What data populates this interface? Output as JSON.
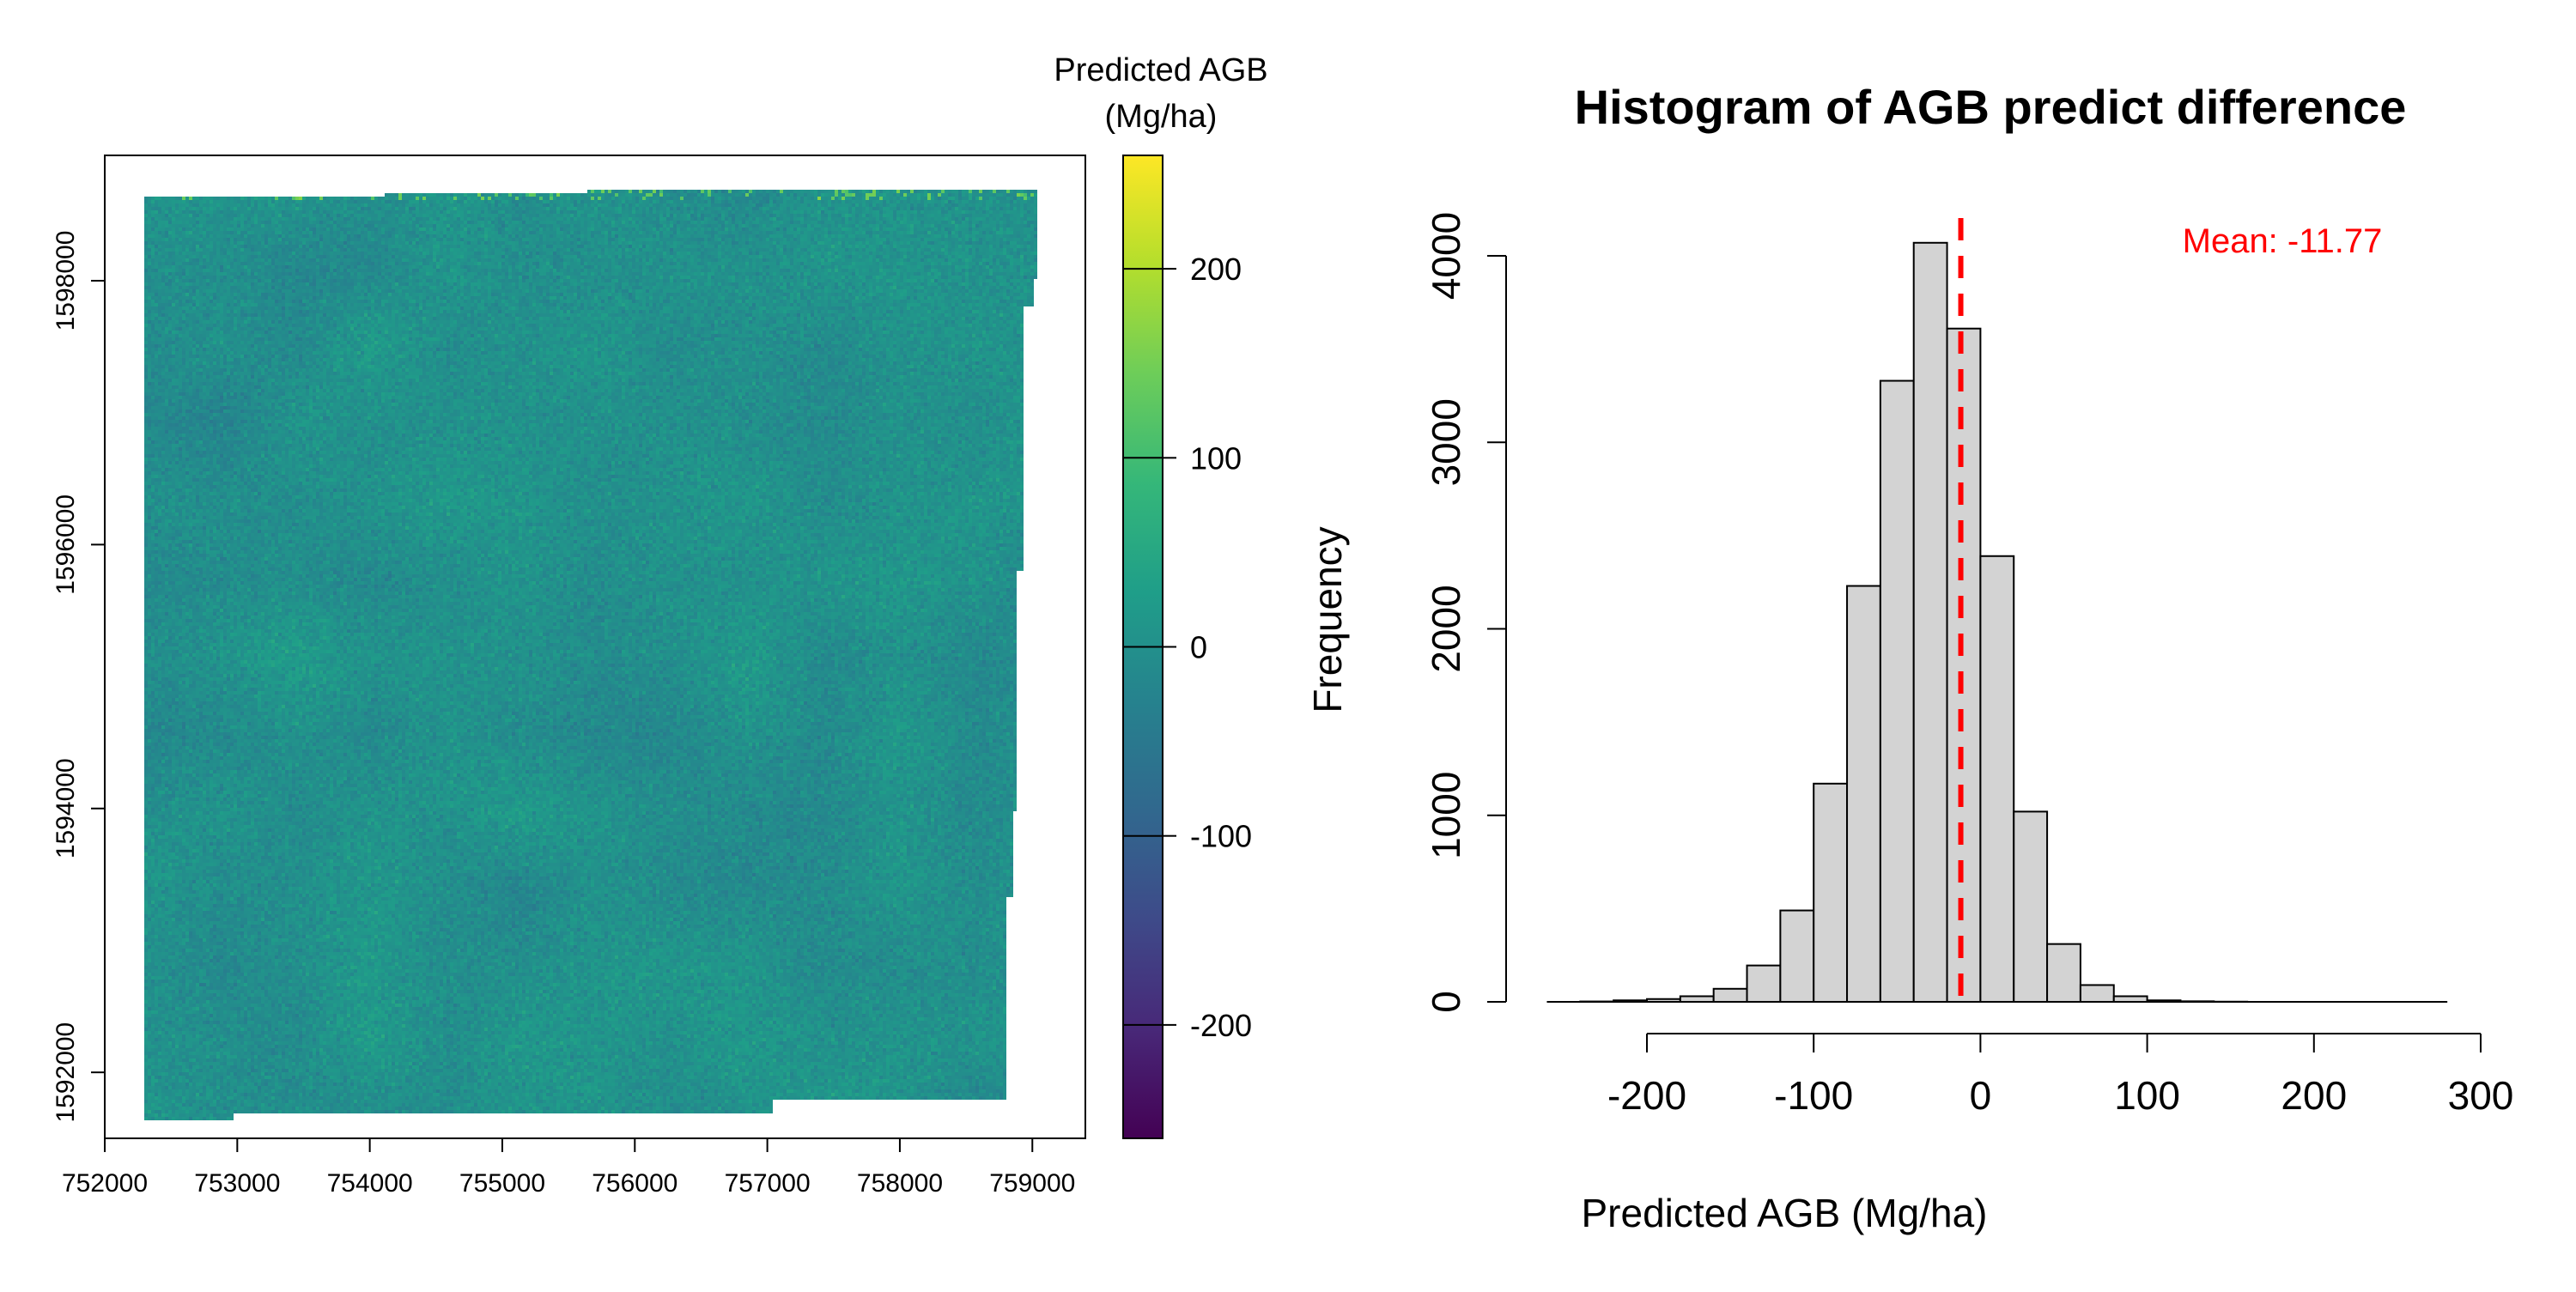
{
  "chart_data": [
    {
      "type": "heatmap",
      "description_source": "raster map",
      "x_ticks": [
        "752000",
        "753000",
        "754000",
        "755000",
        "756000",
        "757000",
        "758000",
        "759000"
      ],
      "y_ticks": [
        "1592000",
        "1594000",
        "1596000",
        "1598000"
      ],
      "xlim": [
        752000,
        759400
      ],
      "ylim": [
        1591500,
        1598950
      ],
      "legend": {
        "title_line1": "Predicted AGB",
        "title_line2": "(Mg/ha)",
        "range": [
          -260,
          260
        ],
        "ticks": [
          "200",
          "100",
          "0",
          "-100",
          "-200"
        ],
        "tick_values": [
          200,
          100,
          0,
          -100,
          -200
        ],
        "palette": [
          "#440154",
          "#482878",
          "#3E4A89",
          "#31688E",
          "#26828E",
          "#1F9E89",
          "#35B779",
          "#6DCD59",
          "#B4DE2C",
          "#FDE725"
        ]
      }
    },
    {
      "type": "bar",
      "title": "Histogram of AGB predict difference",
      "xlabel": "Predicted AGB (Mg/ha)",
      "ylabel": "Frequency",
      "x_ticks": [
        "-200",
        "-100",
        "0",
        "100",
        "200",
        "300"
      ],
      "x_tick_values": [
        -200,
        -100,
        0,
        100,
        200,
        300
      ],
      "y_ticks": [
        "0",
        "1000",
        "2000",
        "3000",
        "4000"
      ],
      "y_tick_values": [
        0,
        1000,
        2000,
        3000,
        4000
      ],
      "xlim": [
        -260,
        280
      ],
      "ylim": [
        0,
        4100
      ],
      "bin_width": 20,
      "bin_start": -260,
      "values": [
        0,
        2,
        8,
        15,
        30,
        70,
        195,
        490,
        1170,
        2230,
        3330,
        4070,
        3610,
        2390,
        1020,
        310,
        90,
        30,
        8,
        3,
        1,
        0,
        0,
        0,
        0,
        0,
        0
      ],
      "bar_color": "#D3D3D3",
      "mean_value": -11.77,
      "mean_label": "Mean: -11.77",
      "mean_color": "#FF0000"
    }
  ]
}
